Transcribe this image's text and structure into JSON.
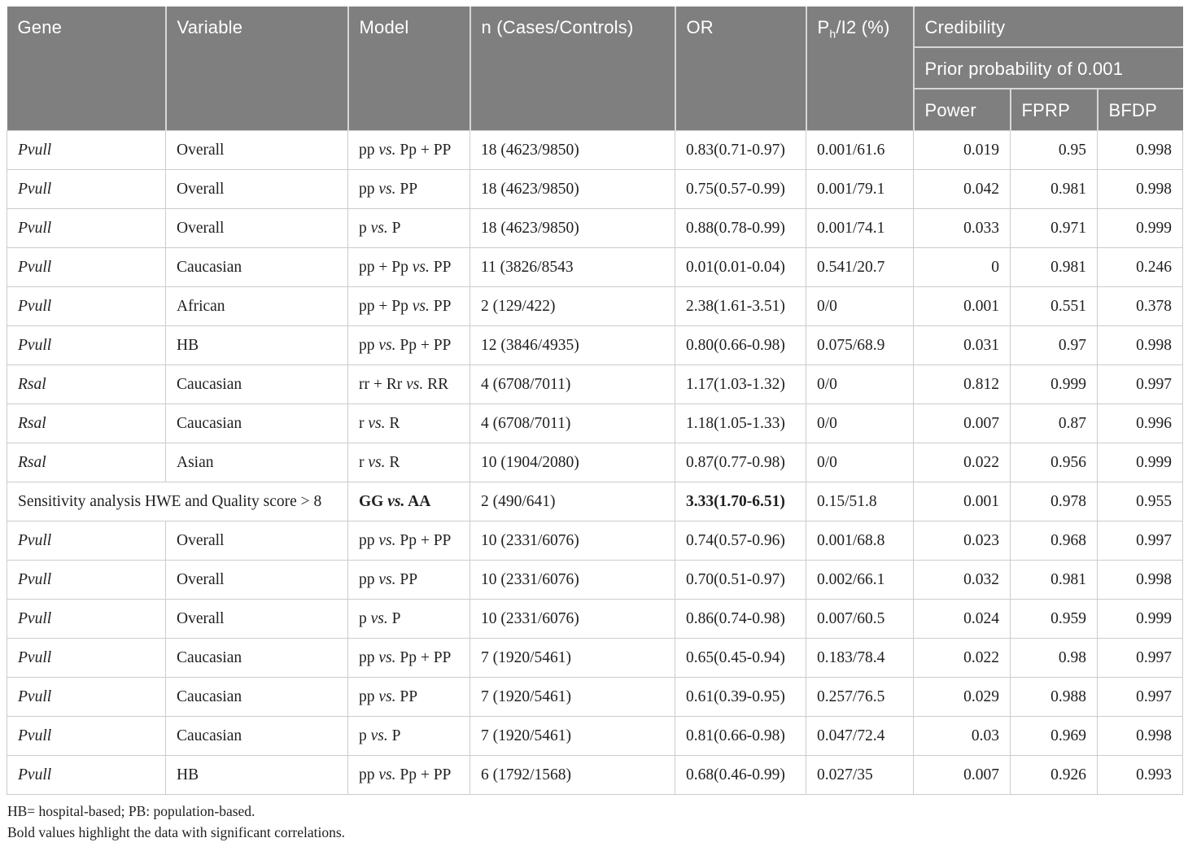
{
  "header": {
    "gene": "Gene",
    "variable": "Variable",
    "model": "Model",
    "n": "n (Cases/Controls)",
    "or": "OR",
    "ph_main": "P",
    "ph_sub": "h",
    "ph_rest": "/I2 (%)",
    "credibility": "Credibility",
    "prior": "Prior probability of 0.001",
    "power": "Power",
    "fprp": "FPRP",
    "bfdp": "BFDP"
  },
  "rows": [
    {
      "gene": "Pvull",
      "italic": true,
      "variable": "Overall",
      "model": "pp vs. Pp + PP",
      "n": "18 (4623/9850)",
      "or": "0.83(0.71-0.97)",
      "ph": "0.001/61.6",
      "power": "0.019",
      "fprp": "0.95",
      "bfdp": "0.998"
    },
    {
      "gene": "Pvull",
      "italic": true,
      "variable": "Overall",
      "model": "pp vs. PP",
      "n": "18 (4623/9850)",
      "or": "0.75(0.57-0.99)",
      "ph": "0.001/79.1",
      "power": "0.042",
      "fprp": "0.981",
      "bfdp": "0.998"
    },
    {
      "gene": "Pvull",
      "italic": true,
      "variable": "Overall",
      "model": "p vs. P",
      "n": "18 (4623/9850)",
      "or": "0.88(0.78-0.99)",
      "ph": "0.001/74.1",
      "power": "0.033",
      "fprp": "0.971",
      "bfdp": "0.999"
    },
    {
      "gene": "Pvull",
      "italic": true,
      "variable": "Caucasian",
      "model": "pp + Pp vs. PP",
      "n": "11 (3826/8543",
      "or": "0.01(0.01-0.04)",
      "ph": "0.541/20.7",
      "power": "0",
      "fprp": "0.981",
      "bfdp": "0.246"
    },
    {
      "gene": "Pvull",
      "italic": true,
      "variable": "African",
      "model": "pp + Pp vs. PP",
      "n": "2 (129/422)",
      "or": "2.38(1.61-3.51)",
      "ph": "0/0",
      "power": "0.001",
      "fprp": "0.551",
      "bfdp": "0.378"
    },
    {
      "gene": "Pvull",
      "italic": true,
      "variable": "HB",
      "model": "pp vs. Pp + PP",
      "n": "12 (3846/4935)",
      "or": "0.80(0.66-0.98)",
      "ph": "0.075/68.9",
      "power": "0.031",
      "fprp": "0.97",
      "bfdp": "0.998"
    },
    {
      "gene": "Rsal",
      "italic": true,
      "variable": "Caucasian",
      "model": "rr + Rr vs. RR",
      "n": "4 (6708/7011)",
      "or": "1.17(1.03-1.32)",
      "ph": "0/0",
      "power": "0.812",
      "fprp": "0.999",
      "bfdp": "0.997"
    },
    {
      "gene": "Rsal",
      "italic": true,
      "variable": "Caucasian",
      "model": "r vs. R",
      "n": "4 (6708/7011)",
      "or": "1.18(1.05-1.33)",
      "ph": "0/0",
      "power": "0.007",
      "fprp": "0.87",
      "bfdp": "0.996"
    },
    {
      "gene": "Rsal",
      "italic": true,
      "variable": "Asian",
      "model": "r vs. R",
      "n": "10 (1904/2080)",
      "or": "0.87(0.77-0.98)",
      "ph": "0/0",
      "power": "0.022",
      "fprp": "0.956",
      "bfdp": "0.999"
    },
    {
      "gene": "Sensitivity analysis HWE and Quality score > 8",
      "italic": false,
      "span": 2,
      "bold": true,
      "model": "GG vs. AA",
      "n": "2 (490/641)",
      "or": "3.33(1.70-6.51)",
      "ph": "0.15/51.8",
      "power": "0.001",
      "fprp": "0.978",
      "bfdp": "0.955"
    },
    {
      "gene": "Pvull",
      "italic": true,
      "variable": "Overall",
      "model": "pp vs. Pp + PP",
      "n": "10 (2331/6076)",
      "or": "0.74(0.57-0.96)",
      "ph": "0.001/68.8",
      "power": "0.023",
      "fprp": "0.968",
      "bfdp": "0.997"
    },
    {
      "gene": "Pvull",
      "italic": true,
      "variable": "Overall",
      "model": "pp vs. PP",
      "n": "10 (2331/6076)",
      "or": "0.70(0.51-0.97)",
      "ph": "0.002/66.1",
      "power": "0.032",
      "fprp": "0.981",
      "bfdp": "0.998"
    },
    {
      "gene": "Pvull",
      "italic": true,
      "variable": "Overall",
      "model": "p vs. P",
      "n": "10 (2331/6076)",
      "or": "0.86(0.74-0.98)",
      "ph": "0.007/60.5",
      "power": "0.024",
      "fprp": "0.959",
      "bfdp": "0.999"
    },
    {
      "gene": "Pvull",
      "italic": true,
      "variable": "Caucasian",
      "model": "pp vs. Pp + PP",
      "n": "7 (1920/5461)",
      "or": "0.65(0.45-0.94)",
      "ph": "0.183/78.4",
      "power": "0.022",
      "fprp": "0.98",
      "bfdp": "0.997"
    },
    {
      "gene": "Pvull",
      "italic": true,
      "variable": "Caucasian",
      "model": "pp vs. PP",
      "n": "7 (1920/5461)",
      "or": "0.61(0.39-0.95)",
      "ph": "0.257/76.5",
      "power": "0.029",
      "fprp": "0.988",
      "bfdp": "0.997"
    },
    {
      "gene": "Pvull",
      "italic": true,
      "variable": "Caucasian",
      "model": "p vs. P",
      "n": "7 (1920/5461)",
      "or": "0.81(0.66-0.98)",
      "ph": "0.047/72.4",
      "power": "0.03",
      "fprp": "0.969",
      "bfdp": "0.998"
    },
    {
      "gene": "Pvull",
      "italic": true,
      "variable": "HB",
      "model": "pp vs. Pp + PP",
      "n": "6 (1792/1568)",
      "or": "0.68(0.46-0.99)",
      "ph": "0.027/35",
      "power": "0.007",
      "fprp": "0.926",
      "bfdp": "0.993"
    }
  ],
  "footnotes": [
    "HB= hospital-based; PB: population-based.",
    "Bold values highlight the data with significant correlations."
  ],
  "colors": {
    "header_bg": "#7f7f7f",
    "header_text": "#ffffff",
    "header_separator": "#d7d7d7",
    "row_border": "#cccccc",
    "body_text": "#1f1f1f"
  }
}
